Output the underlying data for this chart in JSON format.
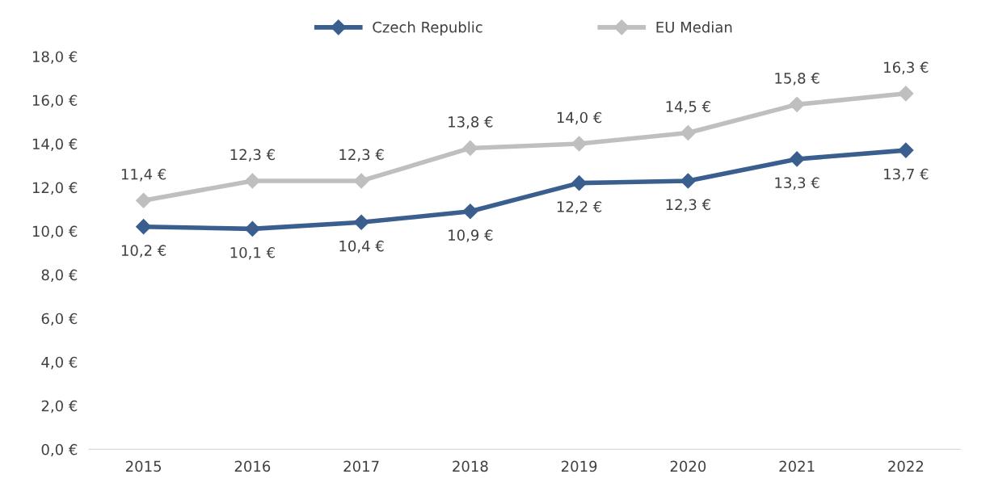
{
  "chart_data": {
    "type": "line",
    "categories": [
      "2015",
      "2016",
      "2017",
      "2018",
      "2019",
      "2020",
      "2021",
      "2022"
    ],
    "series": [
      {
        "name": "Czech Republic",
        "color": "#3a5f8f",
        "values": [
          10.2,
          10.1,
          10.4,
          10.9,
          12.2,
          12.3,
          13.3,
          13.7
        ],
        "value_labels": [
          "10,2 €",
          "10,1 €",
          "10,4 €",
          "10,9 €",
          "12,2 €",
          "12,3 €",
          "13,3 €",
          "13,7 €"
        ]
      },
      {
        "name": "EU Median",
        "color": "#bfbfbf",
        "values": [
          11.4,
          12.3,
          12.3,
          13.8,
          14.0,
          14.5,
          15.8,
          16.3
        ],
        "value_labels": [
          "11,4 €",
          "12,3 €",
          "12,3 €",
          "13,8 €",
          "14,0 €",
          "14,5 €",
          "15,8 €",
          "16,3 €"
        ]
      }
    ],
    "ylim": [
      0,
      18
    ],
    "yticks": [
      {
        "value": 0,
        "label": "0,0 €"
      },
      {
        "value": 2,
        "label": "2,0 €"
      },
      {
        "value": 4,
        "label": "4,0 €"
      },
      {
        "value": 6,
        "label": "6,0 €"
      },
      {
        "value": 8,
        "label": "8,0 €"
      },
      {
        "value": 10,
        "label": "10,0 €"
      },
      {
        "value": 12,
        "label": "12,0 €"
      },
      {
        "value": 14,
        "label": "14,0 €"
      },
      {
        "value": 16,
        "label": "16,0 €"
      },
      {
        "value": 18,
        "label": "18,0 €"
      }
    ],
    "grid": false,
    "legend": "top",
    "marker": "diamond",
    "line_style": "solid"
  }
}
